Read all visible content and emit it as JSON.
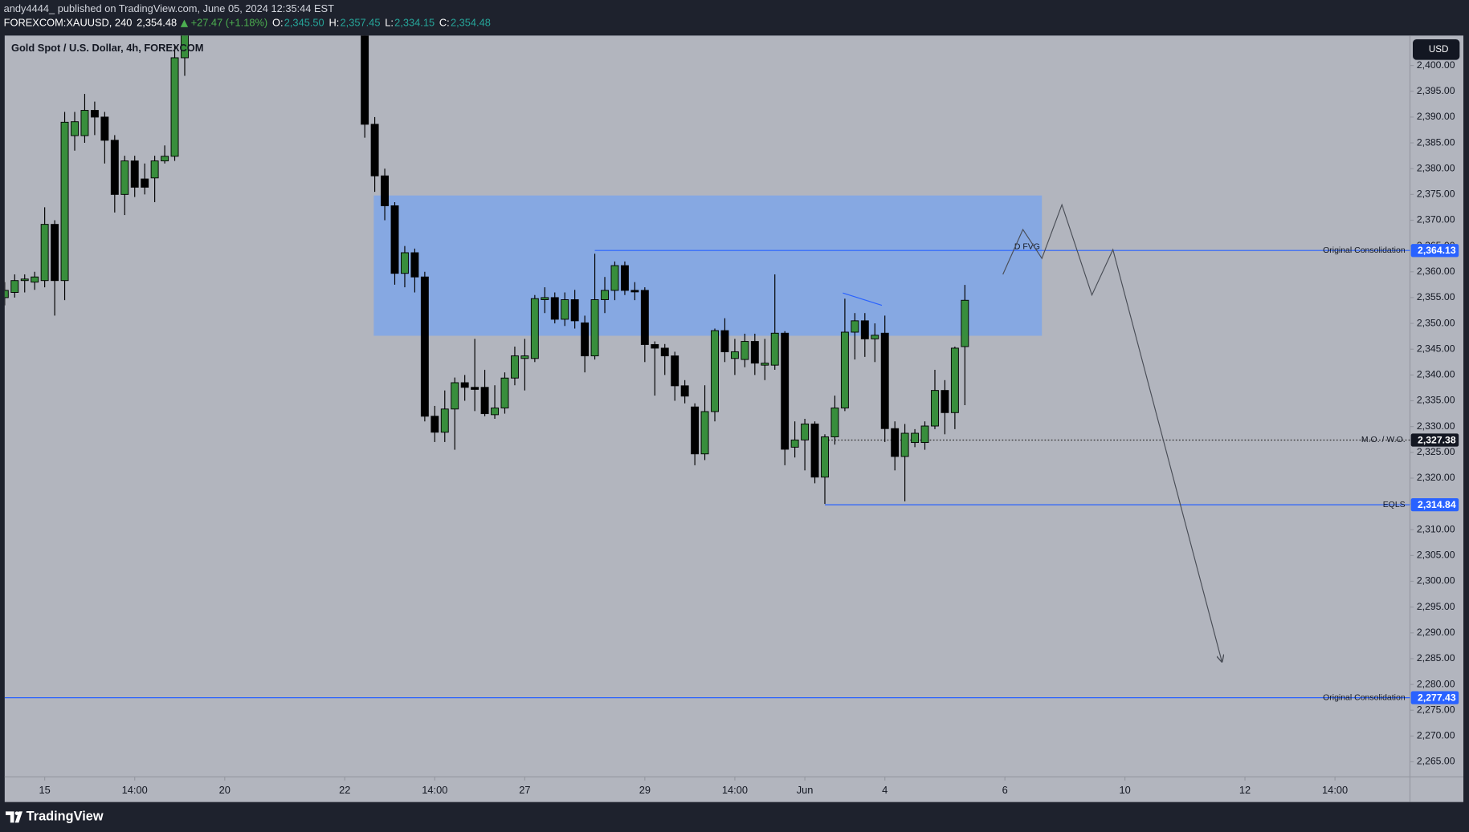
{
  "header": {
    "publisher": "andy4444_ published on TradingView.com, June 05, 2024 12:35:44 EST",
    "symbol": "FOREXCOM:XAUUSD, 240",
    "price": "2,354.48",
    "change": "+27.47 (+1.18%)",
    "ohlc": [
      {
        "label": "O:",
        "value": "2,345.50"
      },
      {
        "label": "H:",
        "value": "2,357.45"
      },
      {
        "label": "L:",
        "value": "2,334.15"
      },
      {
        "label": "C:",
        "value": "2,354.48"
      }
    ]
  },
  "chart_data": {
    "type": "candlestick",
    "title": "Gold Spot / U.S. Dollar, 4h, FOREXCOM",
    "currency": "USD",
    "x": [
      0,
      1,
      2,
      3,
      4,
      5,
      6,
      7,
      8,
      9,
      10,
      11,
      12,
      13,
      14,
      15,
      16,
      17,
      18,
      36,
      37,
      38,
      39,
      40,
      41,
      42,
      43,
      44,
      45,
      46,
      47,
      48,
      49,
      50,
      51,
      52,
      53,
      54,
      55,
      56,
      57,
      58,
      59,
      60,
      61,
      62,
      63,
      64,
      65,
      66,
      67,
      68,
      69,
      70,
      71,
      72,
      73,
      74,
      75,
      76,
      77,
      78,
      79,
      80,
      81,
      82,
      83,
      84,
      85,
      86,
      87,
      88,
      89,
      90,
      91,
      92,
      93,
      94,
      95,
      96
    ],
    "open": [
      2355.0,
      2356.0,
      2358.3,
      2358.0,
      2358.3,
      2369.2,
      2358.3,
      2386.4,
      2386.4,
      2391.3,
      2390.0,
      2385.5,
      2375.0,
      2381.5,
      2378.0,
      2378.2,
      2381.5,
      2382.4,
      2401.5,
      2410.0,
      2388.6,
      2378.6,
      2372.8,
      2359.7,
      2363.7,
      2359.0,
      2332.0,
      2328.9,
      2333.4,
      2338.5,
      2337.6,
      2337.6,
      2332.3,
      2333.6,
      2339.4,
      2343.2,
      2343.2,
      2354.6,
      2355.0,
      2350.8,
      2354.6,
      2350.1,
      2343.7,
      2354.6,
      2356.4,
      2361.2,
      2356.4,
      2356.4,
      2345.9,
      2345.2,
      2343.7,
      2337.9,
      2333.8,
      2324.7,
      2332.9,
      2348.6,
      2343.2,
      2343.0,
      2346.5,
      2341.9,
      2341.9,
      2348.1,
      2326.0,
      2327.4,
      2330.5,
      2320.2,
      2328.0,
      2333.6,
      2348.3,
      2350.5,
      2347.0,
      2348.1,
      2329.6,
      2324.2,
      2326.9,
      2326.9,
      2330.1,
      2337.0,
      2332.7,
      2345.5
    ],
    "high": [
      2358.0,
      2359.5,
      2359.5,
      2360.0,
      2372.5,
      2370.0,
      2391.0,
      2391.0,
      2394.5,
      2393.0,
      2391.0,
      2386.5,
      2382.5,
      2382.5,
      2381.0,
      2382.5,
      2384.5,
      2404.0,
      2410.0,
      2412.0,
      2390.0,
      2380.0,
      2373.5,
      2365.0,
      2364.5,
      2360.0,
      2334.0,
      2337.0,
      2339.5,
      2340.0,
      2347.0,
      2341.0,
      2338.0,
      2340.5,
      2345.5,
      2347.0,
      2355.5,
      2357.0,
      2356.0,
      2356.0,
      2356.5,
      2351.5,
      2363.5,
      2359.0,
      2362.0,
      2362.0,
      2358.0,
      2357.0,
      2346.5,
      2346.0,
      2344.5,
      2339.0,
      2334.5,
      2338.0,
      2349.0,
      2351.0,
      2347.0,
      2348.0,
      2348.0,
      2347.0,
      2359.5,
      2348.5,
      2331.0,
      2331.5,
      2331.0,
      2328.5,
      2336.0,
      2354.8,
      2352.0,
      2352.0,
      2350.0,
      2351.5,
      2331.0,
      2330.5,
      2329.5,
      2331.0,
      2341.0,
      2339.0,
      2345.5,
      2357.45
    ],
    "low": [
      2353.5,
      2355.0,
      2356.0,
      2356.5,
      2357.0,
      2351.5,
      2354.5,
      2383.5,
      2385.0,
      2386.5,
      2381.0,
      2371.5,
      2371.0,
      2374.5,
      2375.0,
      2373.5,
      2381.0,
      2381.5,
      2398.0,
      2386.0,
      2375.5,
      2370.0,
      2357.5,
      2357.0,
      2356.0,
      2331.0,
      2327.0,
      2327.0,
      2325.5,
      2335.0,
      2333.0,
      2332.0,
      2331.5,
      2332.5,
      2338.0,
      2337.0,
      2342.5,
      2352.0,
      2350.0,
      2349.5,
      2349.0,
      2340.5,
      2343.0,
      2352.0,
      2354.5,
      2355.5,
      2354.5,
      2342.5,
      2336.0,
      2340.0,
      2335.0,
      2334.5,
      2322.5,
      2323.5,
      2331.0,
      2342.5,
      2340.0,
      2341.5,
      2340.0,
      2339.0,
      2341.0,
      2322.5,
      2324.0,
      2321.5,
      2319.0,
      2315.0,
      2326.5,
      2333.0,
      2343.0,
      2343.5,
      2342.5,
      2327.0,
      2321.5,
      2315.5,
      2326.0,
      2325.5,
      2329.5,
      2328.5,
      2329.5,
      2334.15
    ],
    "close": [
      2356.4,
      2358.3,
      2358.6,
      2359.0,
      2369.2,
      2358.3,
      2389.0,
      2389.1,
      2391.3,
      2390.0,
      2385.5,
      2375.0,
      2381.5,
      2376.4,
      2376.4,
      2381.5,
      2382.4,
      2401.5,
      2406.0,
      2388.6,
      2378.6,
      2372.8,
      2359.7,
      2363.7,
      2359.0,
      2332.0,
      2328.9,
      2333.4,
      2338.5,
      2337.6,
      2337.2,
      2332.5,
      2333.6,
      2339.4,
      2343.7,
      2343.7,
      2354.8,
      2355.0,
      2350.8,
      2354.6,
      2350.5,
      2343.7,
      2354.6,
      2356.4,
      2361.2,
      2356.4,
      2356.1,
      2345.9,
      2345.2,
      2343.7,
      2337.9,
      2335.9,
      2324.7,
      2332.9,
      2348.6,
      2344.5,
      2344.5,
      2346.5,
      2342.3,
      2342.3,
      2348.1,
      2325.6,
      2327.4,
      2330.5,
      2320.2,
      2328.0,
      2333.6,
      2348.3,
      2350.5,
      2347.0,
      2347.7,
      2329.6,
      2324.2,
      2328.7,
      2328.7,
      2330.1,
      2337.0,
      2332.7,
      2345.2,
      2354.48
    ],
    "up_color": "#388e3c",
    "down_color": "#000000",
    "xlim": [
      0,
      140.5
    ],
    "xticks": [
      {
        "value": 4,
        "label": "15"
      },
      {
        "value": 13,
        "label": "14:00"
      },
      {
        "value": 22,
        "label": "20"
      },
      {
        "value": 34,
        "label": "22"
      },
      {
        "value": 43,
        "label": "14:00"
      },
      {
        "value": 52,
        "label": "27"
      },
      {
        "value": 64,
        "label": "29"
      },
      {
        "value": 73,
        "label": "14:00"
      },
      {
        "value": 80,
        "label": "Jun"
      },
      {
        "value": 88,
        "label": "4"
      },
      {
        "value": 100,
        "label": "6"
      },
      {
        "value": 112,
        "label": "10"
      },
      {
        "value": 124,
        "label": "12"
      },
      {
        "value": 133,
        "label": "14:00"
      }
    ],
    "ylim": [
      2262.1,
      2405.8
    ],
    "yticks": [
      {
        "value": 2265,
        "label": "2,265.00"
      },
      {
        "value": 2270,
        "label": "2,270.00"
      },
      {
        "value": 2275,
        "label": "2,275.00"
      },
      {
        "value": 2280,
        "label": "2,280.00"
      },
      {
        "value": 2285,
        "label": "2,285.00"
      },
      {
        "value": 2290,
        "label": "2,290.00"
      },
      {
        "value": 2295,
        "label": "2,295.00"
      },
      {
        "value": 2300,
        "label": "2,300.00"
      },
      {
        "value": 2305,
        "label": "2,305.00"
      },
      {
        "value": 2310,
        "label": "2,310.00"
      },
      {
        "value": 2315,
        "label": "2,315.00"
      },
      {
        "value": 2320,
        "label": "2,320.00"
      },
      {
        "value": 2325,
        "label": "2,325.00"
      },
      {
        "value": 2330,
        "label": "2,330.00"
      },
      {
        "value": 2335,
        "label": "2,335.00"
      },
      {
        "value": 2340,
        "label": "2,340.00"
      },
      {
        "value": 2345,
        "label": "2,345.00"
      },
      {
        "value": 2350,
        "label": "2,350.00"
      },
      {
        "value": 2355,
        "label": "2,355.00"
      },
      {
        "value": 2360,
        "label": "2,360.00"
      },
      {
        "value": 2365,
        "label": "2,365.00"
      },
      {
        "value": 2370,
        "label": "2,370.00"
      },
      {
        "value": 2375,
        "label": "2,375.00"
      },
      {
        "value": 2380,
        "label": "2,380.00"
      },
      {
        "value": 2385,
        "label": "2,385.00"
      },
      {
        "value": 2390,
        "label": "2,390.00"
      },
      {
        "value": 2395,
        "label": "2,395.00"
      },
      {
        "value": 2400,
        "label": "2,400.00"
      }
    ],
    "grid": false,
    "zone": {
      "x": [
        36.9,
        103.7
      ],
      "y": [
        2347.6,
        2374.8
      ],
      "label": "D FVG",
      "color": "#86a8e2"
    },
    "levels": [
      {
        "value": 2364.13,
        "label": "2,364.13",
        "name": "Original Consolidation",
        "start": 59,
        "color": "#2962ff",
        "tag_color": "#2962ff",
        "dashed": false
      },
      {
        "value": 2327.38,
        "label": "2,327.38",
        "name": "M.O. / W.O.",
        "start": 82,
        "color": "#333333",
        "tag_color": "#131722",
        "dashed": true
      },
      {
        "value": 2314.84,
        "label": "2,314.84",
        "name": "EQLS",
        "start": 82,
        "color": "#2962ff",
        "tag_color": "#2962ff",
        "dashed": false
      },
      {
        "value": 2277.43,
        "label": "2,277.43",
        "name": "Original Consolidation",
        "start": 0,
        "color": "#2962ff",
        "tag_color": "#2962ff",
        "dashed": false
      }
    ],
    "trendline": {
      "x": [
        83.8,
        87.7
      ],
      "y": [
        2355.9,
        2353.5
      ],
      "color": "#2962ff"
    },
    "projection": {
      "x": [
        99.8,
        101.8,
        103.7,
        105.7,
        108.7,
        110.8,
        121.7
      ],
      "y": [
        2359.5,
        2368.2,
        2362.6,
        2373.0,
        2355.5,
        2364.3,
        2284.4
      ],
      "color": "#4a4e57"
    }
  },
  "footer": {
    "brand": "TradingView"
  }
}
